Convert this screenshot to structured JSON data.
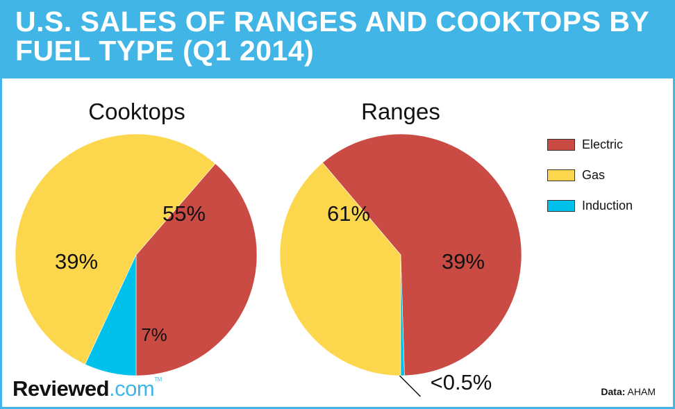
{
  "title": "U.S. SALES OF RANGES AND COOKTOPS BY FUEL TYPE (Q1 2014)",
  "legend": [
    {
      "label": "Electric",
      "color": "#c94b43"
    },
    {
      "label": "Gas",
      "color": "#fcd74e"
    },
    {
      "label": "Induction",
      "color": "#00c0ec"
    }
  ],
  "chart_data": [
    {
      "type": "pie",
      "title": "Cooktops",
      "slices": [
        {
          "name": "Electric",
          "value": 39,
          "label": "39%",
          "color": "#c94b43"
        },
        {
          "name": "Gas",
          "value": 55,
          "label": "55%",
          "color": "#fcd74e"
        },
        {
          "name": "Induction",
          "value": 7,
          "label": "7%",
          "color": "#00c0ec"
        }
      ]
    },
    {
      "type": "pie",
      "title": "Ranges",
      "slices": [
        {
          "name": "Electric",
          "value": 61,
          "label": "61%",
          "color": "#c94b43"
        },
        {
          "name": "Gas",
          "value": 39,
          "label": "39%",
          "color": "#fcd74e"
        },
        {
          "name": "Induction",
          "value": 0.5,
          "label": "<0.5%",
          "color": "#00c0ec"
        }
      ]
    }
  ],
  "logo": {
    "bold": "Re",
    "bold2": "viewed",
    "light": ".com",
    "tm": "TM"
  },
  "source": {
    "key": "Data:",
    "value": "AHAM"
  }
}
